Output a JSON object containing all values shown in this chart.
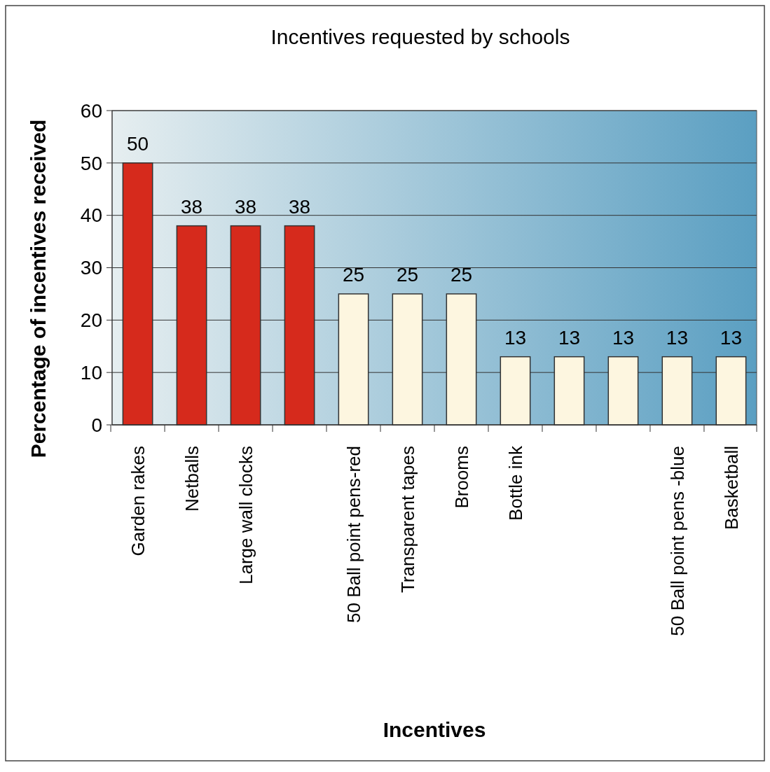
{
  "chart_data": {
    "type": "bar",
    "title": "Incentives requested by schools",
    "xlabel": "Incentives",
    "ylabel": "Percentage of incentives received",
    "categories": [
      "Garden rakes",
      "Netballs",
      "Large wall clocks",
      null,
      "50 Ball point pens-red",
      "Transparent tapes",
      "Brooms",
      "Bottle ink",
      null,
      null,
      "50 Ball point pens -blue",
      "Basketball"
    ],
    "values": [
      50,
      38,
      38,
      38,
      25,
      25,
      25,
      13,
      13,
      13,
      13,
      13
    ],
    "colors": [
      "#d62a1c",
      "#d62a1c",
      "#d62a1c",
      "#d62a1c",
      "#fdf6e0",
      "#fdf6e0",
      "#fdf6e0",
      "#fdf6e0",
      "#fdf6e0",
      "#fdf6e0",
      "#fdf6e0",
      "#fdf6e0"
    ],
    "ylim": [
      0,
      60
    ],
    "yticks": [
      0,
      10,
      20,
      30,
      40,
      50,
      60
    ],
    "grid": "y",
    "data_labels": true
  }
}
